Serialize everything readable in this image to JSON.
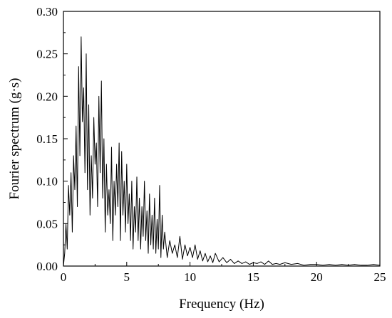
{
  "chart_data": {
    "type": "line",
    "title": "",
    "xlabel": "Frequency (Hz)",
    "ylabel": "Fourier spectrum (g·s)",
    "xlim": [
      0,
      25
    ],
    "ylim": [
      0,
      0.3
    ],
    "xticks": [
      0,
      5,
      10,
      15,
      20,
      25
    ],
    "xtick_labels": [
      "0",
      "5",
      "10",
      "15",
      "20",
      "25"
    ],
    "yticks": [
      0,
      0.05,
      0.1,
      0.15,
      0.2,
      0.25,
      0.3
    ],
    "ytick_labels": [
      "0.00",
      "0.05",
      "0.10",
      "0.15",
      "0.20",
      "0.25",
      "0.30"
    ],
    "grid": false,
    "legend": "none",
    "line_color": "#000000",
    "series": [
      {
        "x": [
          0.0,
          0.1,
          0.2,
          0.3,
          0.4,
          0.5,
          0.6,
          0.7,
          0.8,
          0.9,
          1.0,
          1.1,
          1.2,
          1.3,
          1.4,
          1.5,
          1.6,
          1.7,
          1.8,
          1.9,
          2.0,
          2.1,
          2.2,
          2.3,
          2.4,
          2.5,
          2.6,
          2.7,
          2.8,
          2.9,
          3.0,
          3.1,
          3.2,
          3.3,
          3.4,
          3.5,
          3.6,
          3.7,
          3.8,
          3.9,
          4.0,
          4.1,
          4.2,
          4.3,
          4.4,
          4.5,
          4.6,
          4.7,
          4.8,
          4.9,
          5.0,
          5.1,
          5.2,
          5.3,
          5.4,
          5.5,
          5.6,
          5.7,
          5.8,
          5.9,
          6.0,
          6.1,
          6.2,
          6.3,
          6.4,
          6.5,
          6.6,
          6.7,
          6.8,
          6.9,
          7.0,
          7.1,
          7.2,
          7.3,
          7.4,
          7.5,
          7.6,
          7.7,
          7.8,
          7.9,
          8.0,
          8.2,
          8.4,
          8.6,
          8.8,
          9.0,
          9.2,
          9.4,
          9.6,
          9.8,
          10.0,
          10.2,
          10.4,
          10.6,
          10.8,
          11.0,
          11.2,
          11.4,
          11.6,
          11.8,
          12.0,
          12.3,
          12.6,
          12.9,
          13.2,
          13.5,
          13.8,
          14.1,
          14.4,
          14.7,
          15.0,
          15.3,
          15.6,
          15.9,
          16.2,
          16.5,
          16.8,
          17.1,
          17.5,
          18.0,
          18.5,
          19.0,
          19.5,
          20.0,
          20.5,
          21.0,
          21.5,
          22.0,
          22.5,
          23.0,
          23.5,
          24.0,
          24.5,
          25.0
        ],
        "y": [
          0.0,
          0.015,
          0.05,
          0.02,
          0.095,
          0.06,
          0.11,
          0.04,
          0.13,
          0.09,
          0.165,
          0.07,
          0.235,
          0.13,
          0.27,
          0.17,
          0.21,
          0.11,
          0.25,
          0.09,
          0.19,
          0.06,
          0.13,
          0.08,
          0.175,
          0.12,
          0.145,
          0.07,
          0.2,
          0.11,
          0.218,
          0.08,
          0.15,
          0.04,
          0.12,
          0.06,
          0.09,
          0.05,
          0.14,
          0.03,
          0.1,
          0.06,
          0.12,
          0.07,
          0.145,
          0.03,
          0.135,
          0.06,
          0.1,
          0.04,
          0.12,
          0.05,
          0.085,
          0.03,
          0.1,
          0.02,
          0.07,
          0.04,
          0.105,
          0.03,
          0.08,
          0.02,
          0.07,
          0.035,
          0.1,
          0.03,
          0.065,
          0.015,
          0.085,
          0.025,
          0.06,
          0.02,
          0.08,
          0.015,
          0.055,
          0.02,
          0.095,
          0.01,
          0.06,
          0.02,
          0.04,
          0.01,
          0.03,
          0.015,
          0.025,
          0.01,
          0.035,
          0.008,
          0.025,
          0.012,
          0.022,
          0.01,
          0.025,
          0.008,
          0.018,
          0.006,
          0.015,
          0.005,
          0.012,
          0.004,
          0.015,
          0.005,
          0.01,
          0.004,
          0.008,
          0.003,
          0.006,
          0.003,
          0.005,
          0.002,
          0.004,
          0.003,
          0.005,
          0.002,
          0.006,
          0.002,
          0.003,
          0.002,
          0.004,
          0.002,
          0.003,
          0.001,
          0.002,
          0.002,
          0.001,
          0.002,
          0.001,
          0.002,
          0.001,
          0.002,
          0.001,
          0.001,
          0.002,
          0.001
        ]
      }
    ]
  }
}
